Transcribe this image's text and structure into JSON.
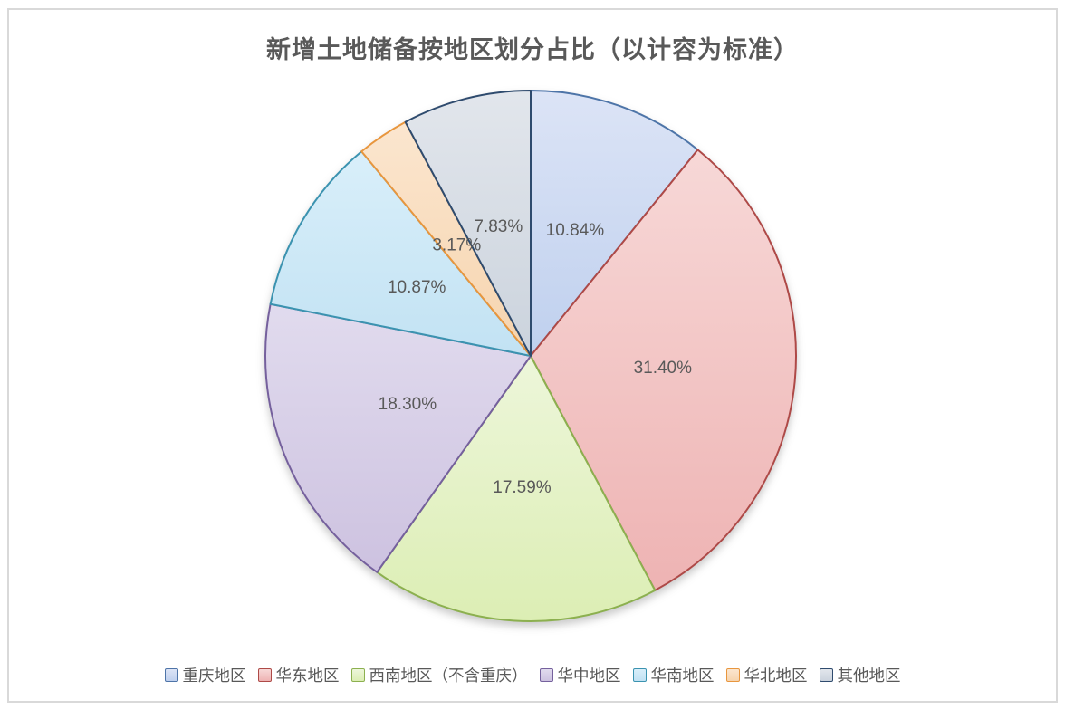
{
  "frame": {
    "border_color": "#D9D9D9",
    "background": "#FFFFFF"
  },
  "chart_data": {
    "type": "pie",
    "title": "新增土地储备按地区划分占比（以计容为标准）",
    "title_color": "#595959",
    "label_color": "#595959",
    "legend_text_color": "#595959",
    "legend_position": "bottom",
    "start_angle_deg": 0,
    "direction": "clockwise",
    "data_label_format": "0.00%",
    "total_percent": 100.0,
    "slices": [
      {
        "label": "重庆地区",
        "value": 10.84,
        "display": "10.84%",
        "border": "#4E74A8",
        "grad_top": "#DCE4F6",
        "grad_bottom": "#BFD0EE"
      },
      {
        "label": "华东地区",
        "value": 31.4,
        "display": "31.40%",
        "border": "#AE4A47",
        "grad_top": "#F7D8D7",
        "grad_bottom": "#EEB3B3"
      },
      {
        "label": "西南地区（不含重庆）",
        "value": 17.59,
        "display": "17.59%",
        "border": "#8CB04F",
        "grad_top": "#EDF6DA",
        "grad_bottom": "#DCEEB4"
      },
      {
        "label": "华中地区",
        "value": 18.3,
        "display": "18.30%",
        "border": "#75619D",
        "grad_top": "#E1DBEE",
        "grad_bottom": "#CDC2E0"
      },
      {
        "label": "华南地区",
        "value": 10.87,
        "display": "10.87%",
        "border": "#3B93B0",
        "grad_top": "#D9EFFA",
        "grad_bottom": "#C2E2F3"
      },
      {
        "label": "华北地区",
        "value": 3.17,
        "display": "3.17%",
        "border": "#E8963E",
        "grad_top": "#FBE6CF",
        "grad_bottom": "#F6D4AE"
      },
      {
        "label": "其他地区",
        "value": 7.83,
        "display": "7.83%",
        "border": "#2F4B6E",
        "grad_top": "#E2E6EC",
        "grad_bottom": "#CBD3DD"
      }
    ]
  }
}
